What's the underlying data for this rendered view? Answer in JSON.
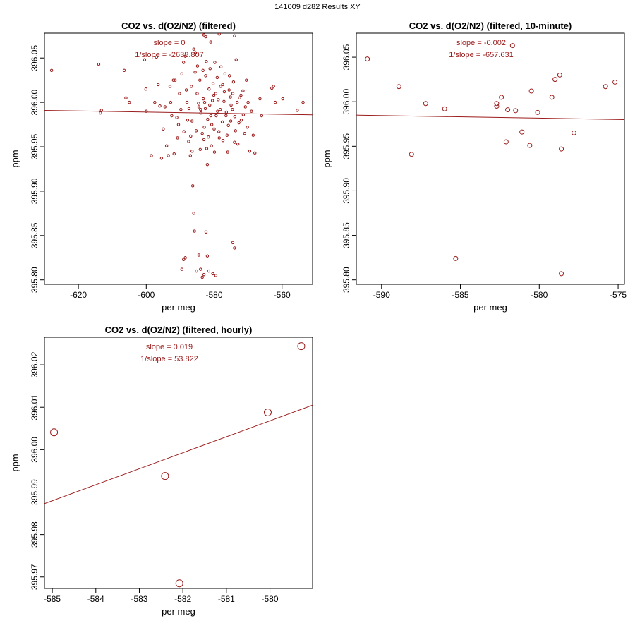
{
  "page_title": "141009   d282   Results XY",
  "colors": {
    "series": "#9b1c1c",
    "axis": "#000000",
    "background": "#ffffff"
  },
  "chart_data": [
    {
      "id": "filtered",
      "type": "scatter",
      "title": "CO2 vs. d(O2/N2) (filtered)",
      "xlabel": "per meg",
      "ylabel": "ppm",
      "xlim": [
        -630,
        -551
      ],
      "ylim": [
        395.795,
        396.078
      ],
      "xticks": [
        -620,
        -600,
        -580,
        -560
      ],
      "yticks": [
        395.8,
        395.85,
        395.9,
        395.95,
        396.0,
        396.05
      ],
      "annotations": [
        "slope = 0",
        "1/slope = -2638.807"
      ],
      "fit_line": {
        "x": [
          -630,
          -551
        ],
        "y": [
          395.991,
          395.986
        ]
      },
      "points": [
        [
          -627.9,
          396.036
        ],
        [
          -614.0,
          396.043
        ],
        [
          -613.5,
          395.988
        ],
        [
          -613.2,
          395.991
        ],
        [
          -606.5,
          396.036
        ],
        [
          -606.0,
          396.005
        ],
        [
          -605.0,
          396.0
        ],
        [
          -600.5,
          396.048
        ],
        [
          -600.1,
          396.015
        ],
        [
          -600.0,
          395.99
        ],
        [
          -597.0,
          396.051
        ],
        [
          -597.5,
          396.0
        ],
        [
          -596.0,
          395.996
        ],
        [
          -595.5,
          395.937
        ],
        [
          -594.0,
          395.951
        ],
        [
          -593.5,
          395.94
        ],
        [
          -592.8,
          396.0
        ],
        [
          -592.0,
          396.025
        ],
        [
          -591.5,
          396.025
        ],
        [
          -591.0,
          395.983
        ],
        [
          -590.5,
          395.975
        ],
        [
          -589.5,
          396.032
        ],
        [
          -589.0,
          396.045
        ],
        [
          -588.5,
          396.052
        ],
        [
          -588.0,
          396.0
        ],
        [
          -587.8,
          395.98
        ],
        [
          -587.5,
          395.956
        ],
        [
          -587.0,
          395.94
        ],
        [
          -586.5,
          395.945
        ],
        [
          -586.0,
          396.06
        ],
        [
          -585.5,
          396.056
        ],
        [
          -585.0,
          396.01
        ],
        [
          -584.5,
          395.995
        ],
        [
          -584.2,
          396.025
        ],
        [
          -584.0,
          395.992
        ],
        [
          -583.5,
          395.965
        ],
        [
          -583.0,
          395.958
        ],
        [
          -582.8,
          396.0
        ],
        [
          -582.5,
          396.03
        ],
        [
          -582.2,
          395.948
        ],
        [
          -582.0,
          395.93
        ],
        [
          -581.5,
          396.015
        ],
        [
          -581.0,
          395.985
        ],
        [
          -580.5,
          396.002
        ],
        [
          -580.0,
          395.97
        ],
        [
          -579.8,
          396.045
        ],
        [
          -579.5,
          396.01
        ],
        [
          -579.0,
          395.99
        ],
        [
          -578.5,
          395.96
        ],
        [
          -578.0,
          396.04
        ],
        [
          -577.5,
          396.02
        ],
        [
          -577.0,
          396.012
        ],
        [
          -576.5,
          395.985
        ],
        [
          -576.0,
          395.944
        ],
        [
          -575.5,
          396.03
        ],
        [
          -575.0,
          395.997
        ],
        [
          -574.5,
          396.01
        ],
        [
          -574.0,
          395.955
        ],
        [
          -573.5,
          396.048
        ],
        [
          -573.0,
          395.953
        ],
        [
          -572.5,
          396.005
        ],
        [
          -572.0,
          395.98
        ],
        [
          -571.5,
          396.013
        ],
        [
          -571.0,
          395.965
        ],
        [
          -570.5,
          396.025
        ],
        [
          -570.0,
          396.0
        ],
        [
          -569.5,
          395.945
        ],
        [
          -569.0,
          395.99
        ],
        [
          -568.5,
          395.963
        ],
        [
          -568.0,
          395.943
        ],
        [
          -566.5,
          396.004
        ],
        [
          -566.0,
          395.985
        ],
        [
          -563.0,
          396.016
        ],
        [
          -562.5,
          396.018
        ],
        [
          -562.0,
          396.0
        ],
        [
          -559.8,
          396.004
        ],
        [
          -555.5,
          395.991
        ],
        [
          -553.8,
          396.0
        ],
        [
          -589.5,
          395.812
        ],
        [
          -589.0,
          395.823
        ],
        [
          -588.5,
          395.825
        ],
        [
          -586.3,
          395.906
        ],
        [
          -586.0,
          395.875
        ],
        [
          -585.8,
          395.855
        ],
        [
          -585.2,
          395.81
        ],
        [
          -584.5,
          395.828
        ],
        [
          -584.0,
          395.812
        ],
        [
          -583.5,
          395.803
        ],
        [
          -583.0,
          395.806
        ],
        [
          -582.4,
          395.854
        ],
        [
          -582.0,
          395.827
        ],
        [
          -581.6,
          395.81
        ],
        [
          -580.4,
          395.807
        ],
        [
          -579.5,
          395.805
        ],
        [
          -574.5,
          395.842
        ],
        [
          -574.0,
          395.836
        ],
        [
          -583.8,
          396.082
        ],
        [
          -583.5,
          396.079
        ],
        [
          -583.0,
          396.076
        ],
        [
          -582.5,
          396.074
        ],
        [
          -578.5,
          396.077
        ],
        [
          -574.0,
          396.075
        ],
        [
          -581.0,
          396.068
        ],
        [
          -584.6,
          395.999
        ],
        [
          -583.9,
          395.988
        ],
        [
          -583.2,
          396.004
        ],
        [
          -582.6,
          395.993
        ],
        [
          -581.9,
          395.981
        ],
        [
          -581.3,
          395.997
        ],
        [
          -580.7,
          395.975
        ],
        [
          -580.1,
          396.008
        ],
        [
          -579.4,
          395.985
        ],
        [
          -578.8,
          396.003
        ],
        [
          -578.2,
          395.992
        ],
        [
          -577.6,
          395.978
        ],
        [
          -577.1,
          396.001
        ],
        [
          -576.4,
          395.989
        ],
        [
          -575.8,
          395.974
        ],
        [
          -575.2,
          396.006
        ],
        [
          -574.6,
          395.992
        ],
        [
          -573.9,
          395.984
        ],
        [
          -573.2,
          396.0
        ],
        [
          -572.7,
          395.977
        ],
        [
          -572.1,
          396.008
        ],
        [
          -571.4,
          395.986
        ],
        [
          -570.8,
          395.995
        ],
        [
          -570.2,
          395.972
        ],
        [
          -586.7,
          396.018
        ],
        [
          -586.9,
          395.962
        ],
        [
          -585.6,
          396.034
        ],
        [
          -585.3,
          395.968
        ],
        [
          -584.9,
          396.041
        ],
        [
          -584.1,
          395.947
        ],
        [
          -583.3,
          396.036
        ],
        [
          -582.9,
          395.972
        ],
        [
          -582.3,
          396.046
        ],
        [
          -581.7,
          395.961
        ],
        [
          -581.2,
          396.038
        ],
        [
          -580.8,
          395.951
        ],
        [
          -580.3,
          396.021
        ],
        [
          -579.9,
          395.944
        ],
        [
          -579.1,
          396.028
        ],
        [
          -578.6,
          395.967
        ],
        [
          -578.1,
          396.018
        ],
        [
          -577.4,
          395.957
        ],
        [
          -576.8,
          396.032
        ],
        [
          -576.2,
          395.963
        ],
        [
          -575.6,
          396.014
        ],
        [
          -575.1,
          395.979
        ],
        [
          -574.3,
          396.023
        ],
        [
          -573.7,
          395.968
        ],
        [
          -590.8,
          395.96
        ],
        [
          -590.2,
          396.01
        ],
        [
          -589.8,
          395.992
        ],
        [
          -588.9,
          395.967
        ],
        [
          -588.2,
          396.014
        ],
        [
          -587.4,
          395.993
        ],
        [
          -586.5,
          395.979
        ],
        [
          -592.5,
          395.985
        ],
        [
          -593.0,
          396.018
        ],
        [
          -591.8,
          395.942
        ],
        [
          -594.5,
          395.995
        ],
        [
          -596.5,
          396.02
        ],
        [
          -598.5,
          395.94
        ],
        [
          -595.0,
          395.97
        ]
      ]
    },
    {
      "id": "ten_minute",
      "type": "scatter",
      "title": "CO2 vs. d(O2/N2) (filtered, 10-minute)",
      "xlabel": "per meg",
      "ylabel": "ppm",
      "xlim": [
        -591.6,
        -574.6
      ],
      "ylim": [
        395.795,
        396.077
      ],
      "xticks": [
        -590,
        -585,
        -580,
        -575
      ],
      "yticks": [
        395.8,
        395.85,
        395.9,
        395.95,
        396.0,
        396.05
      ],
      "annotations": [
        "slope = -0.002",
        "1/slope = -657.631"
      ],
      "fit_line": {
        "x": [
          -591.6,
          -574.6
        ],
        "y": [
          395.985,
          395.98
        ]
      },
      "points": [
        [
          -590.9,
          396.048
        ],
        [
          -588.9,
          396.017
        ],
        [
          -588.1,
          395.941
        ],
        [
          -587.2,
          395.998
        ],
        [
          -586.0,
          395.992
        ],
        [
          -585.3,
          395.824
        ],
        [
          -582.7,
          395.998
        ],
        [
          -582.7,
          395.995
        ],
        [
          -582.4,
          396.005
        ],
        [
          -582.1,
          395.955
        ],
        [
          -582.0,
          395.991
        ],
        [
          -581.5,
          395.99
        ],
        [
          -581.7,
          396.063
        ],
        [
          -581.1,
          395.966
        ],
        [
          -580.6,
          395.951
        ],
        [
          -580.5,
          396.012
        ],
        [
          -580.1,
          395.988
        ],
        [
          -579.2,
          396.005
        ],
        [
          -579.0,
          396.025
        ],
        [
          -578.7,
          396.03
        ],
        [
          -578.6,
          395.947
        ],
        [
          -578.6,
          395.807
        ],
        [
          -577.8,
          395.965
        ],
        [
          -575.8,
          396.017
        ],
        [
          -575.2,
          396.022
        ]
      ]
    },
    {
      "id": "hourly",
      "type": "scatter",
      "title": "CO2 vs. d(O2/N2) (filtered, hourly)",
      "xlabel": "per meg",
      "ylabel": "ppm",
      "xlim": [
        -585.18,
        -579.02
      ],
      "ylim": [
        395.9673,
        396.0265
      ],
      "xticks": [
        -585,
        -584,
        -583,
        -582,
        -581,
        -580
      ],
      "yticks": [
        395.97,
        395.98,
        395.99,
        396.0,
        396.01,
        396.02
      ],
      "annotations": [
        "slope = 0.019",
        "1/slope = 53.822"
      ],
      "fit_line": {
        "x": [
          -585.18,
          -579.02
        ],
        "y": [
          395.9873,
          396.0105
        ]
      },
      "points": [
        [
          -584.96,
          396.0041
        ],
        [
          -582.41,
          395.9938
        ],
        [
          -582.08,
          395.9685
        ],
        [
          -580.05,
          396.0088
        ],
        [
          -579.28,
          396.0244
        ]
      ]
    }
  ]
}
